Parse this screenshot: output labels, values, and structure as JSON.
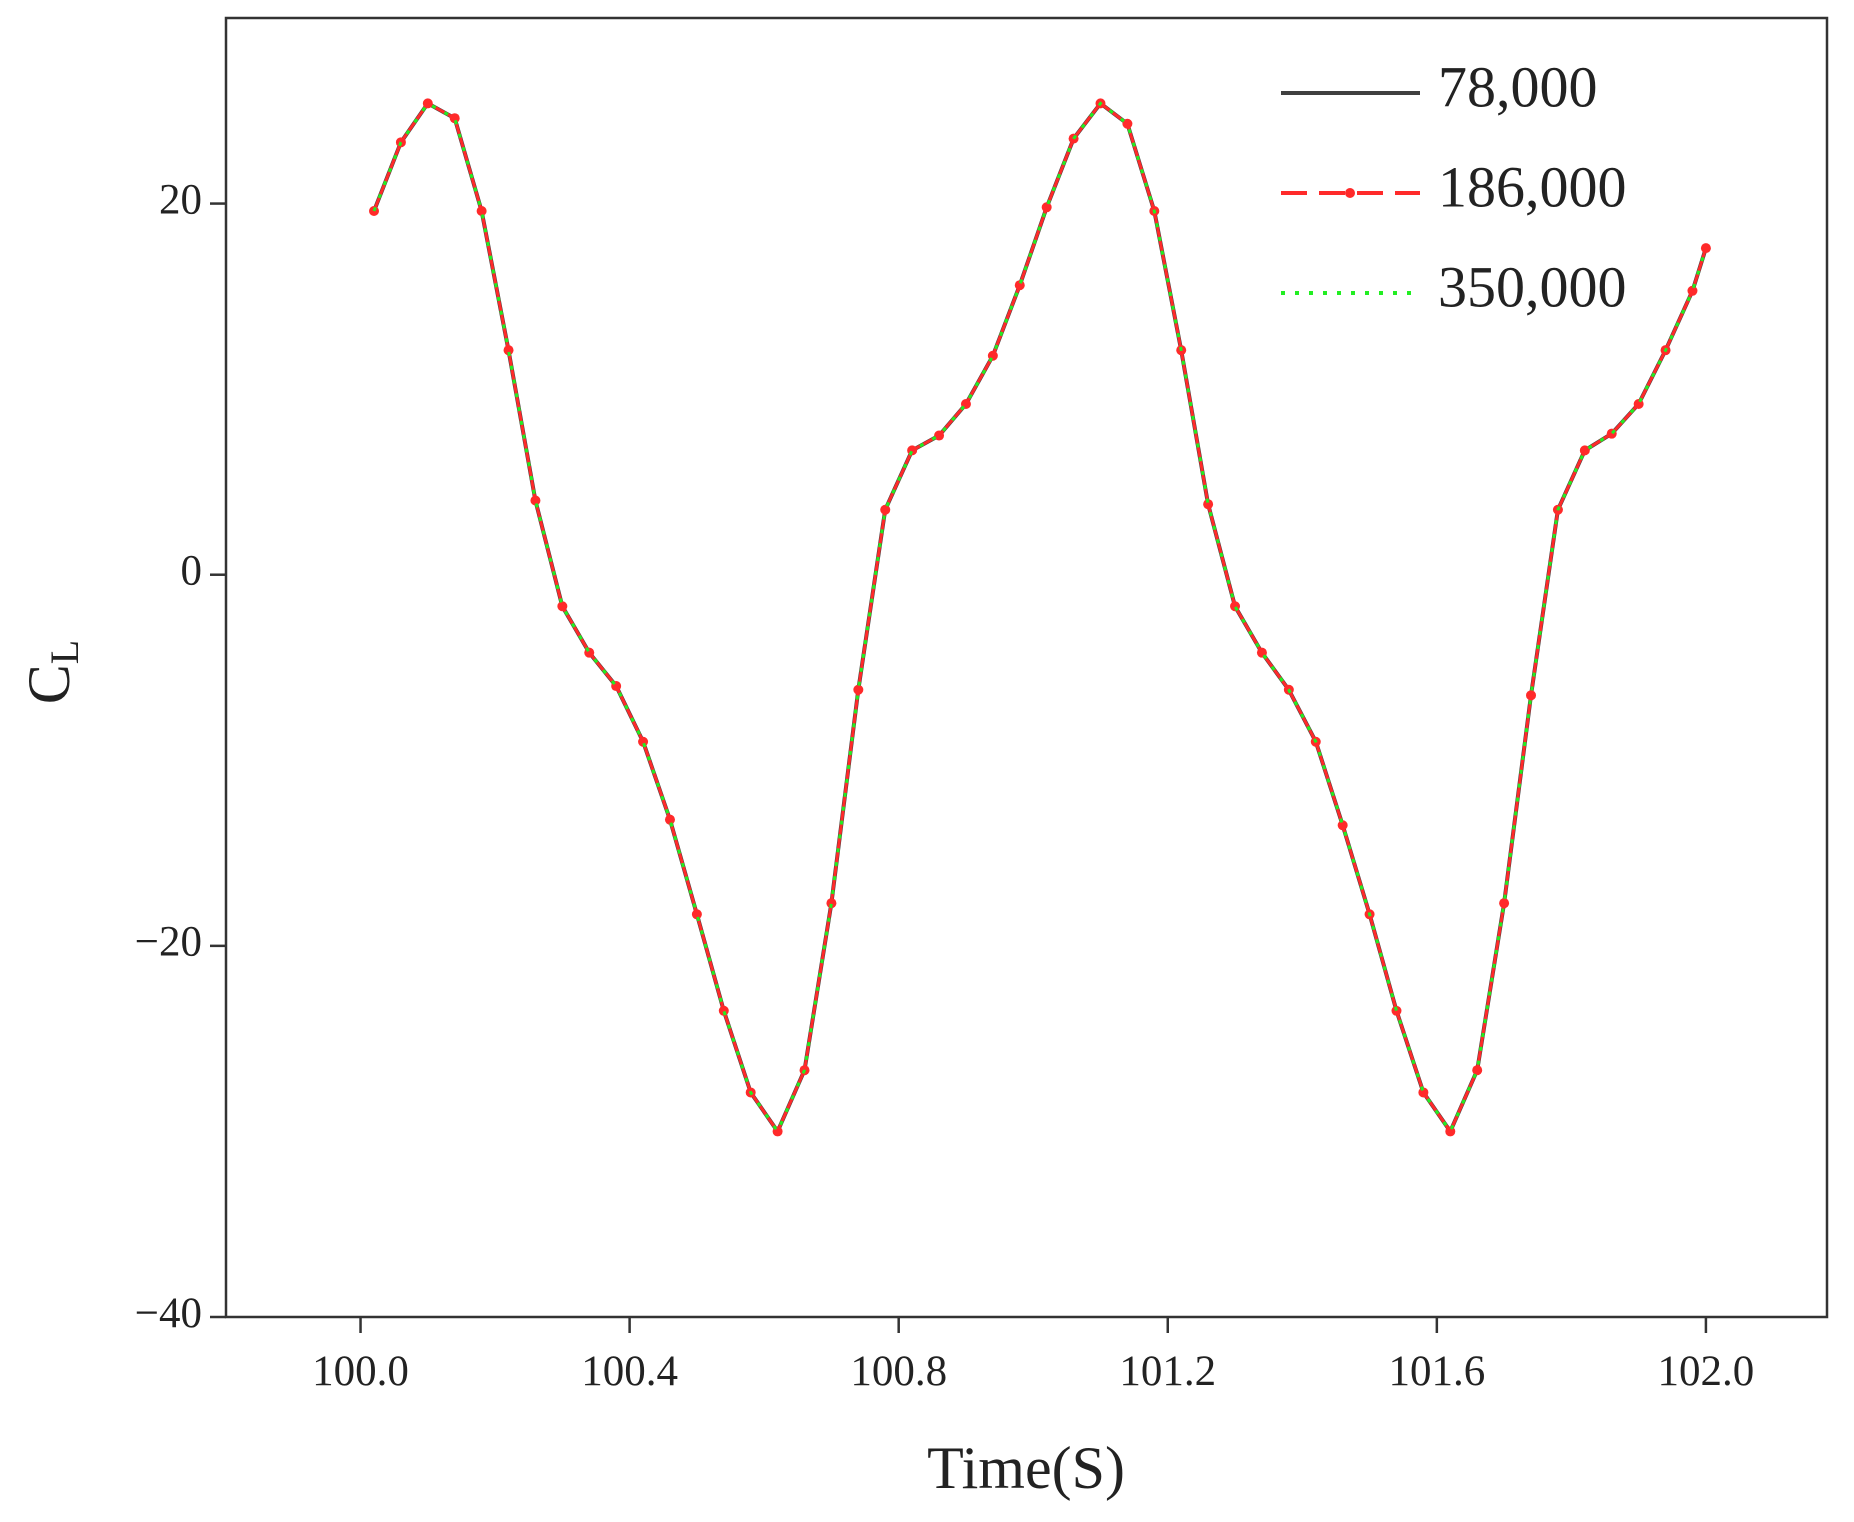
{
  "chart_data": {
    "type": "line",
    "xlabel": "Time(S)",
    "ylabel": "C",
    "ylabel_sub": "L",
    "x": [
      100.02,
      100.06,
      100.1,
      100.14,
      100.18,
      100.22,
      100.26,
      100.3,
      100.34,
      100.38,
      100.42,
      100.46,
      100.5,
      100.54,
      100.58,
      100.62,
      100.66,
      100.7,
      100.74,
      100.78,
      100.82,
      100.86,
      100.9,
      100.94,
      100.98,
      101.02,
      101.06,
      101.1,
      101.14,
      101.18,
      101.22,
      101.26,
      101.3,
      101.34,
      101.38,
      101.42,
      101.46,
      101.5,
      101.54,
      101.58,
      101.62,
      101.66,
      101.7,
      101.74,
      101.78,
      101.82,
      101.86,
      101.9,
      101.94,
      101.98,
      102.0
    ],
    "series": [
      {
        "name": "78,000",
        "color": "#404040",
        "style": "solid",
        "values": [
          19.6,
          23.3,
          25.4,
          24.6,
          19.6,
          12.1,
          4.0,
          -1.7,
          -4.2,
          -6.0,
          -9.0,
          -13.2,
          -18.3,
          -23.5,
          -27.9,
          -30.0,
          -26.7,
          -17.7,
          -6.2,
          3.5,
          6.7,
          7.5,
          9.2,
          11.8,
          15.6,
          19.8,
          23.5,
          25.4,
          24.3,
          19.6,
          12.1,
          3.8,
          -1.7,
          -4.2,
          -6.2,
          -9.0,
          -13.5,
          -18.3,
          -23.5,
          -27.9,
          -30.0,
          -26.7,
          -17.7,
          -6.5,
          3.5,
          6.7,
          7.6,
          9.2,
          12.1,
          15.3,
          17.6
        ]
      },
      {
        "name": "186,000",
        "color": "#ff2a2a",
        "style": "dash-marker",
        "values": [
          19.6,
          23.3,
          25.4,
          24.6,
          19.6,
          12.1,
          4.0,
          -1.7,
          -4.2,
          -6.0,
          -9.0,
          -13.2,
          -18.3,
          -23.5,
          -27.9,
          -30.0,
          -26.7,
          -17.7,
          -6.2,
          3.5,
          6.7,
          7.5,
          9.2,
          11.8,
          15.6,
          19.8,
          23.5,
          25.4,
          24.3,
          19.6,
          12.1,
          3.8,
          -1.7,
          -4.2,
          -6.2,
          -9.0,
          -13.5,
          -18.3,
          -23.5,
          -27.9,
          -30.0,
          -26.7,
          -17.7,
          -6.5,
          3.5,
          6.7,
          7.6,
          9.2,
          12.1,
          15.3,
          17.6
        ]
      },
      {
        "name": "350,000",
        "color": "#22ee22",
        "style": "dot",
        "values": [
          19.6,
          23.3,
          25.4,
          24.6,
          19.6,
          12.1,
          4.0,
          -1.7,
          -4.2,
          -6.0,
          -9.0,
          -13.2,
          -18.3,
          -23.5,
          -27.9,
          -30.0,
          -26.7,
          -17.7,
          -6.2,
          3.5,
          6.7,
          7.5,
          9.2,
          11.8,
          15.6,
          19.8,
          23.5,
          25.4,
          24.3,
          19.6,
          12.1,
          3.8,
          -1.7,
          -4.2,
          -6.2,
          -9.0,
          -13.5,
          -18.3,
          -23.5,
          -27.9,
          -30.0,
          -26.7,
          -17.7,
          -6.5,
          3.5,
          6.7,
          7.6,
          9.2,
          12.1,
          15.3,
          17.6
        ]
      }
    ],
    "xlim": [
      99.8,
      102.18
    ],
    "ylim": [
      -40,
      30
    ],
    "xticks": [
      {
        "value": 100,
        "label": "100.0"
      },
      {
        "value": 100.4,
        "label": "100.4"
      },
      {
        "value": 100.8,
        "label": "100.8"
      },
      {
        "value": 101.2,
        "label": "101.2"
      },
      {
        "value": 101.6,
        "label": "101.6"
      },
      {
        "value": 102,
        "label": "102.0"
      }
    ],
    "yticks": [
      {
        "value": -40,
        "label": "−40"
      },
      {
        "value": -20,
        "label": "−20"
      },
      0,
      20
    ],
    "grid": false,
    "legend": "upper right"
  }
}
